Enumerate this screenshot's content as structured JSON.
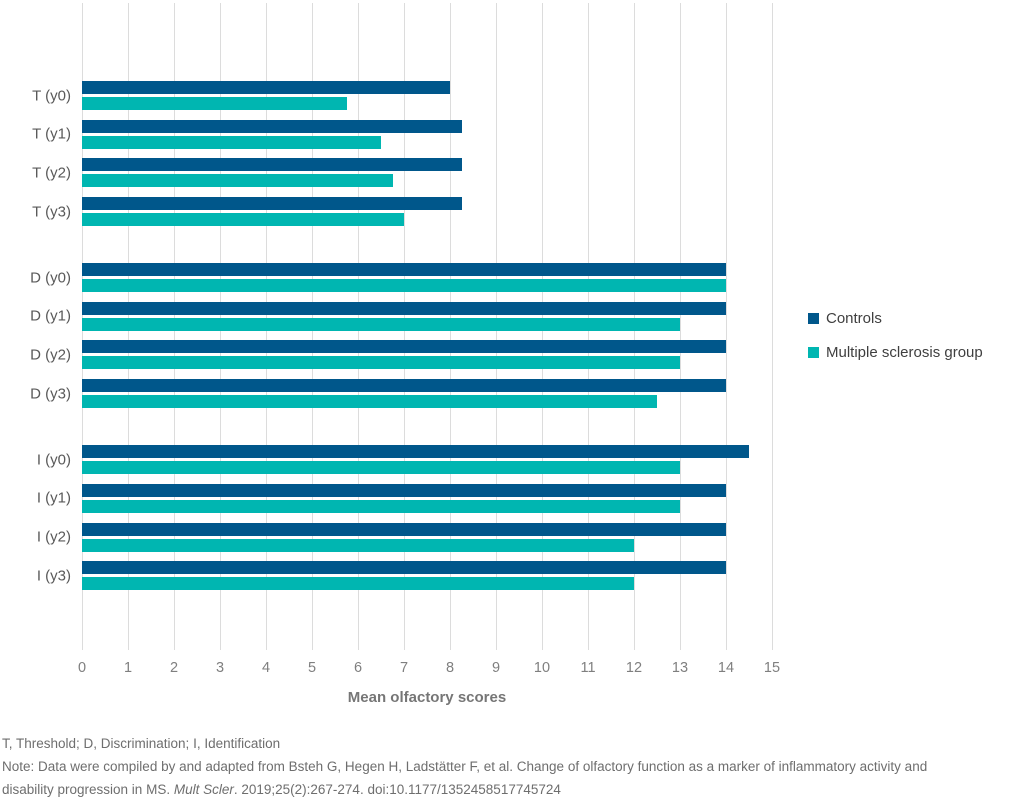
{
  "chart_data": {
    "type": "bar",
    "orientation": "horizontal",
    "categories": [
      "T (y0)",
      "T (y1)",
      "T (y2)",
      "T (y3)",
      "D (y0)",
      "D (y1)",
      "D (y2)",
      "D (y3)",
      "I (y0)",
      "I (y1)",
      "I (y2)",
      "I (y3)"
    ],
    "group_size": 4,
    "series": [
      {
        "name": "Controls",
        "color": "#00578b",
        "values": [
          8,
          8.25,
          8.25,
          8.25,
          14,
          14,
          14,
          14,
          14.5,
          14,
          14,
          14
        ]
      },
      {
        "name": "Multiple sclerosis group",
        "color": "#00b6b1",
        "values": [
          5.75,
          6.5,
          6.75,
          7,
          14,
          13,
          13,
          12.5,
          13,
          13,
          12,
          12
        ]
      }
    ],
    "xlabel": "Mean olfactory scores",
    "xlim": [
      0,
      15
    ],
    "xticks": [
      0,
      1,
      2,
      3,
      4,
      5,
      6,
      7,
      8,
      9,
      10,
      11,
      12,
      13,
      14,
      15
    ],
    "grid": true,
    "legend_position": "right",
    "gridline_color": "#dcdcdc"
  },
  "footer": {
    "line1": "T, Threshold; D, Discrimination; I, Identification",
    "line2": "Note: Data were compiled by and adapted from Bsteh G, Hegen H, Ladstätter F, et al. Change of olfactory function as a marker of inflammatory activity and",
    "line3_prefix": "disability progression in MS. ",
    "line3_journal": "Mult Scler",
    "line3_suffix": ". 2019;25(2):267-274. doi:10.1177/1352458517745724"
  }
}
